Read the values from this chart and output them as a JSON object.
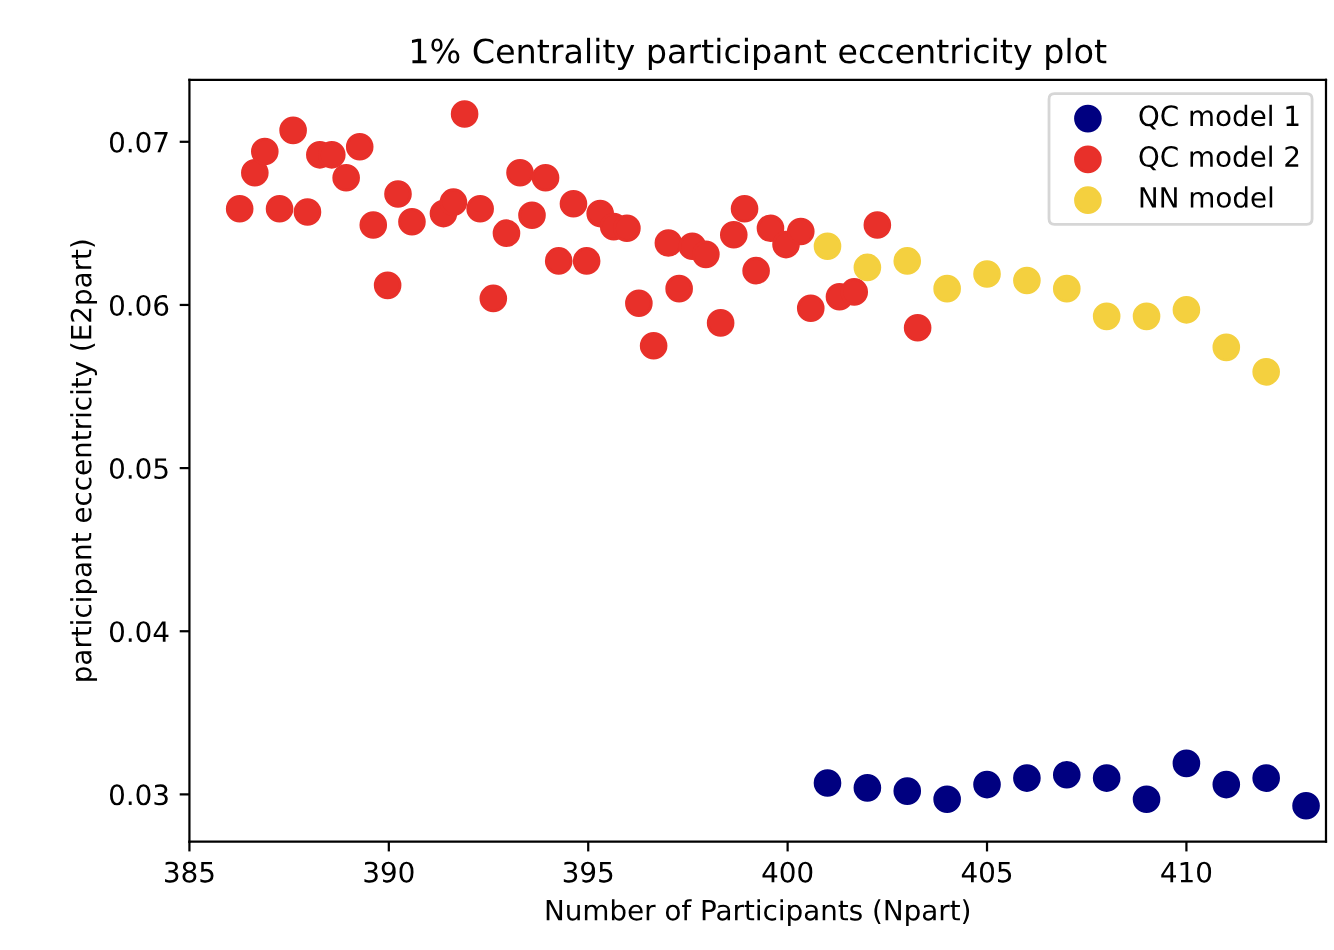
{
  "chart_data": {
    "type": "scatter",
    "title": "1% Centrality participant eccentricity plot",
    "xlabel": "Number of Participants (Npart)",
    "ylabel": "participant eccentricity (E2part)",
    "xlim": [
      385,
      413.5
    ],
    "ylim": [
      0.0271,
      0.0738
    ],
    "xticks": [
      385,
      390,
      395,
      400,
      405,
      410
    ],
    "yticks": [
      0.03,
      0.04,
      0.05,
      0.06,
      0.07
    ],
    "grid": false,
    "legend": "top right",
    "marker": "circle",
    "series": [
      {
        "name": "QC model 1",
        "color": "#000080",
        "x": [
          401,
          402,
          403,
          404,
          405,
          406,
          407,
          408,
          409,
          410,
          411,
          412,
          413
        ],
        "values": [
          0.0307,
          0.0304,
          0.0302,
          0.0297,
          0.0306,
          0.031,
          0.0312,
          0.031,
          0.0297,
          0.0319,
          0.0306,
          0.031,
          0.0293
        ]
      },
      {
        "name": "QC model 2",
        "color": "#e8302a",
        "x": [
          386.26,
          386.64,
          386.89,
          387.6,
          387.26,
          387.96,
          388.27,
          388.57,
          388.93,
          389.27,
          389.61,
          389.97,
          390.23,
          390.58,
          390.86,
          391.12,
          391.37,
          391.62,
          391.9,
          392.29,
          392.62,
          392.95,
          393.29,
          393.59,
          393.93,
          394.26,
          394.63,
          394.96,
          395.3,
          395.64,
          395.97,
          396.27,
          396.64,
          397.01,
          397.28,
          397.61,
          397.95,
          398.32,
          398.65,
          398.92,
          399.21,
          399.57,
          399.96,
          400.33,
          400.58,
          401.3,
          401.67,
          402.25,
          403.26
        ],
        "values": [
          0.0659,
          0.0681,
          0.0694,
          0.0707,
          0.0659,
          0.0657,
          0.0692,
          0.0692,
          0.0678,
          0.0697,
          0.0649,
          0.0612,
          0.0668,
          0.0651,
          null,
          null,
          0.0656,
          0.0663,
          0.0717,
          0.0659,
          0.0604,
          0.0644,
          0.0681,
          0.0655,
          0.0678,
          0.0627,
          0.0662,
          0.0627,
          0.0656,
          0.0648,
          0.0647,
          0.0601,
          0.0575,
          0.0638,
          0.061,
          0.0636,
          0.0631,
          0.0589,
          0.0643,
          0.0659,
          0.0621,
          0.0647,
          0.0637,
          0.0645,
          0.0598,
          0.0605,
          0.0608,
          0.0649,
          0.0586
        ]
      },
      {
        "name": "NN model",
        "color": "#f4d03f",
        "x": [
          401,
          402,
          403,
          404,
          405,
          406,
          407,
          408,
          409,
          410,
          411,
          412
        ],
        "values": [
          0.0636,
          0.0623,
          0.0627,
          0.061,
          0.0619,
          0.0615,
          0.061,
          0.0593,
          0.0593,
          0.0597,
          0.0574,
          0.0559
        ]
      }
    ]
  }
}
